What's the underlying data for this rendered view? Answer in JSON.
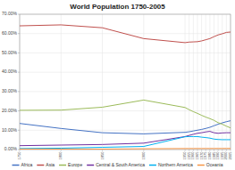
{
  "chart_data": {
    "type": "line",
    "title": "World Population 1750-2005",
    "x": [
      1750,
      1800,
      1850,
      1900,
      1950,
      1955,
      1960,
      1965,
      1970,
      1975,
      1980,
      1985,
      1990,
      1995,
      2000,
      2005
    ],
    "series": [
      {
        "name": "Africa",
        "color": "#4472C4",
        "values": [
          0.135,
          0.109,
          0.087,
          0.081,
          0.089,
          0.092,
          0.096,
          0.1,
          0.104,
          0.109,
          0.115,
          0.123,
          0.131,
          0.138,
          0.144,
          0.149
        ]
      },
      {
        "name": "Asia",
        "color": "#C0504D",
        "values": [
          0.64,
          0.645,
          0.63,
          0.574,
          0.553,
          0.556,
          0.557,
          0.558,
          0.562,
          0.568,
          0.574,
          0.584,
          0.593,
          0.599,
          0.606,
          0.608
        ]
      },
      {
        "name": "Europe",
        "color": "#9BBB59",
        "values": [
          0.203,
          0.204,
          0.219,
          0.256,
          0.2175,
          0.206,
          0.196,
          0.187,
          0.177,
          0.168,
          0.16,
          0.151,
          0.139,
          0.131,
          0.121,
          0.112
        ]
      },
      {
        "name": "Central & South America",
        "color": "#7030A0",
        "values": [
          0.02,
          0.023,
          0.026,
          0.033,
          0.067,
          0.073,
          0.079,
          0.084,
          0.087,
          0.091,
          0.094,
          0.087,
          0.084,
          0.086,
          0.087,
          0.087
        ]
      },
      {
        "name": "Northern America",
        "color": "#00B0F0",
        "values": [
          0.005,
          0.007,
          0.0115,
          0.016,
          0.066,
          0.067,
          0.067,
          0.067,
          0.064,
          0.062,
          0.059,
          0.054,
          0.052,
          0.051,
          0.051,
          0.051
        ]
      },
      {
        "name": "Oceania",
        "color": "#F79646",
        "values": [
          0.002,
          0.002,
          0.0022,
          0.004,
          0.0051,
          0.0052,
          0.0052,
          0.0053,
          0.0053,
          0.0054,
          0.0054,
          0.0055,
          0.0055,
          0.0055,
          0.0056,
          0.0056
        ]
      }
    ],
    "xlim": [
      1750,
      2005
    ],
    "xticks": [
      1750,
      1800,
      1850,
      1900,
      1950,
      1955,
      1960,
      1965,
      1970,
      1975,
      1980,
      1985,
      1990,
      1995,
      2000,
      2005
    ],
    "ylim": [
      0.0,
      0.7
    ],
    "yticks": [
      {
        "value": 0.0,
        "label": "0.00%"
      },
      {
        "value": 0.1,
        "label": "10.00%"
      },
      {
        "value": 0.2,
        "label": "20.00%"
      },
      {
        "value": 0.3,
        "label": "30.00%"
      },
      {
        "value": 0.4,
        "label": "40.00%"
      },
      {
        "value": 0.5,
        "label": "50.00%"
      },
      {
        "value": 0.6,
        "label": "60.00%"
      },
      {
        "value": 0.7,
        "label": "70.00%"
      }
    ],
    "grid": true,
    "legend": "bottom"
  }
}
